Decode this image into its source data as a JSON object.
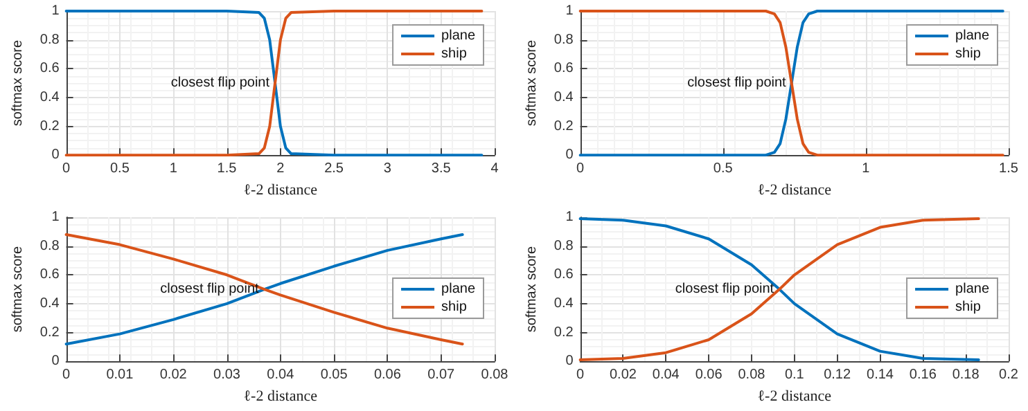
{
  "chart_data": [
    {
      "type": "line",
      "xlabel": "ℓ-2 distance",
      "ylabel": "softmax score",
      "x": [
        0,
        0.5,
        1,
        1.5,
        1.8,
        1.85,
        1.9,
        1.93,
        1.95,
        1.97,
        2.0,
        2.05,
        2.1,
        2.5,
        3,
        3.5,
        3.88
      ],
      "series": [
        {
          "name": "plane",
          "color": "#0072bd",
          "values": [
            1,
            1,
            1,
            1,
            0.99,
            0.95,
            0.8,
            0.62,
            0.5,
            0.38,
            0.2,
            0.05,
            0.01,
            0,
            0,
            0,
            0
          ]
        },
        {
          "name": "ship",
          "color": "#d95319",
          "values": [
            0,
            0,
            0,
            0,
            0.01,
            0.05,
            0.2,
            0.38,
            0.5,
            0.62,
            0.8,
            0.95,
            0.99,
            1,
            1,
            1,
            1
          ]
        }
      ],
      "xlim": [
        0,
        4
      ],
      "xticks": [
        0,
        0.5,
        1,
        1.5,
        2,
        2.5,
        3,
        3.5,
        4
      ],
      "ylim": [
        0,
        1
      ],
      "yticks": [
        0,
        0.2,
        0.4,
        0.6,
        0.8,
        1
      ],
      "grid": true,
      "legend": "top right",
      "annotations": [
        {
          "text": "closest flip point",
          "x": 1.95,
          "y": 0.5
        }
      ]
    },
    {
      "type": "line",
      "xlabel": "ℓ-2 distance",
      "ylabel": "softmax score",
      "x": [
        0,
        0.25,
        0.5,
        0.65,
        0.68,
        0.7,
        0.72,
        0.74,
        0.76,
        0.78,
        0.8,
        0.83,
        1,
        1.25,
        1.48
      ],
      "series": [
        {
          "name": "plane",
          "color": "#0072bd",
          "values": [
            0,
            0,
            0,
            0,
            0.02,
            0.08,
            0.25,
            0.5,
            0.75,
            0.92,
            0.98,
            1,
            1,
            1,
            1
          ]
        },
        {
          "name": "ship",
          "color": "#d95319",
          "values": [
            1,
            1,
            1,
            1,
            0.98,
            0.92,
            0.75,
            0.5,
            0.25,
            0.08,
            0.02,
            0,
            0,
            0,
            0
          ]
        }
      ],
      "xlim": [
        0,
        1.5
      ],
      "xticks": [
        0,
        0.5,
        1,
        1.5
      ],
      "ylim": [
        0,
        1
      ],
      "yticks": [
        0,
        0.2,
        0.4,
        0.6,
        0.8,
        1
      ],
      "grid": true,
      "legend": "top right",
      "annotations": [
        {
          "text": "closest flip point",
          "x": 0.74,
          "y": 0.5
        }
      ]
    },
    {
      "type": "line",
      "xlabel": "ℓ-2 distance",
      "ylabel": "softmax score",
      "x": [
        0,
        0.01,
        0.02,
        0.03,
        0.037,
        0.04,
        0.05,
        0.06,
        0.07,
        0.074
      ],
      "series": [
        {
          "name": "plane",
          "color": "#0072bd",
          "values": [
            0.12,
            0.19,
            0.29,
            0.4,
            0.5,
            0.54,
            0.66,
            0.77,
            0.85,
            0.88
          ]
        },
        {
          "name": "ship",
          "color": "#d95319",
          "values": [
            0.88,
            0.81,
            0.71,
            0.6,
            0.5,
            0.46,
            0.34,
            0.23,
            0.15,
            0.12
          ]
        }
      ],
      "xlim": [
        0,
        0.08
      ],
      "xticks": [
        0,
        0.01,
        0.02,
        0.03,
        0.04,
        0.05,
        0.06,
        0.07,
        0.08
      ],
      "ylim": [
        0,
        1
      ],
      "yticks": [
        0,
        0.2,
        0.4,
        0.6,
        0.8,
        1
      ],
      "grid": true,
      "legend": "right",
      "annotations": [
        {
          "text": "closest flip point",
          "x": 0.037,
          "y": 0.5
        }
      ]
    },
    {
      "type": "line",
      "xlabel": "ℓ-2 distance",
      "ylabel": "softmax score",
      "x": [
        0,
        0.02,
        0.04,
        0.06,
        0.08,
        0.093,
        0.1,
        0.12,
        0.14,
        0.16,
        0.186
      ],
      "series": [
        {
          "name": "plane",
          "color": "#0072bd",
          "values": [
            0.99,
            0.98,
            0.94,
            0.85,
            0.67,
            0.5,
            0.4,
            0.19,
            0.07,
            0.02,
            0.01
          ]
        },
        {
          "name": "ship",
          "color": "#d95319",
          "values": [
            0.01,
            0.02,
            0.06,
            0.15,
            0.33,
            0.5,
            0.6,
            0.81,
            0.93,
            0.98,
            0.99
          ]
        }
      ],
      "xlim": [
        0,
        0.2
      ],
      "xticks": [
        0,
        0.02,
        0.04,
        0.06,
        0.08,
        0.1,
        0.12,
        0.14,
        0.16,
        0.18,
        0.2
      ],
      "ylim": [
        0,
        1
      ],
      "yticks": [
        0,
        0.2,
        0.4,
        0.6,
        0.8,
        1
      ],
      "grid": true,
      "legend": "right",
      "annotations": [
        {
          "text": "closest flip point",
          "x": 0.093,
          "y": 0.5
        }
      ]
    }
  ]
}
